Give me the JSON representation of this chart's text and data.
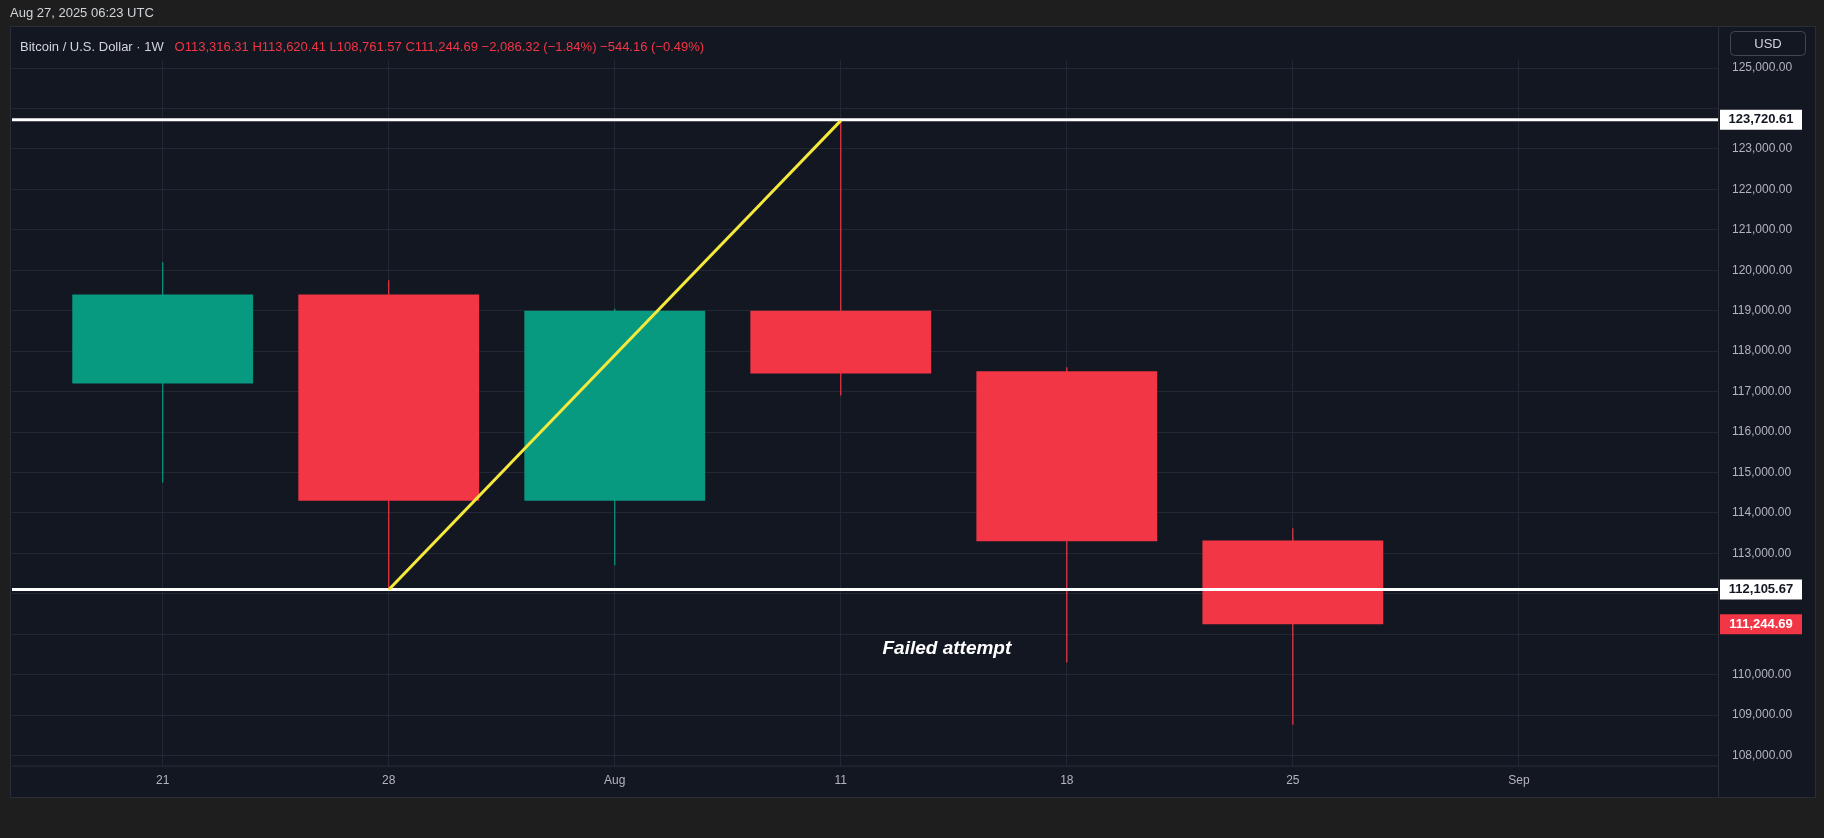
{
  "chart_data": {
    "type": "candlestick",
    "title": "Bitcoin / U.S. Dollar · 1W",
    "subtitle": "O113,316.31 H113,620.41 L108,761.57 C111,244.69 −2,086.32 (−1.84%) −544.16 (−0.49%)",
    "ylabel": "USD",
    "x": [
      "2025-07-21",
      "2025-07-28",
      "2025-08-04",
      "2025-08-11",
      "2025-08-18",
      "2025-08-25"
    ],
    "ohlc": [
      [
        117200,
        120200,
        114750,
        119400
      ],
      [
        119400,
        119750,
        112100,
        114300
      ],
      [
        114300,
        119050,
        112700,
        119000
      ],
      [
        119000,
        123720.61,
        116900,
        117450
      ],
      [
        117500,
        117600,
        110300,
        113300
      ],
      [
        113316.31,
        113620.41,
        108761.57,
        111244.69
      ]
    ],
    "colors": [
      "#089981",
      "#f23645",
      "#089981",
      "#f23645",
      "#f23645",
      "#f23645"
    ],
    "series": [
      {
        "type": "line",
        "color": "#f5e93b",
        "x": [
          "2025-07-28",
          "2025-08-11"
        ],
        "values": [
          112100,
          123700
        ]
      }
    ],
    "ref_lines": [
      {
        "axis": "y",
        "value": 123720.61,
        "label": "123,720.61",
        "color": "#ffffff"
      },
      {
        "axis": "y",
        "value": 112105.67,
        "label": "112,105.67",
        "color": "#ffffff"
      }
    ],
    "annotations": [
      "Aug 27, 2025 06:23 UTC",
      "Failed attempt",
      "111,244.69"
    ],
    "xlim": [
      "2025-07-16T08:00",
      "2025-09-07T04:00"
    ],
    "xticks": [
      {
        "value": "2025-07-21",
        "label": "21"
      },
      {
        "value": "2025-07-28",
        "label": "28"
      },
      {
        "value": "2025-08-04",
        "label": "Aug"
      },
      {
        "value": "2025-08-11",
        "label": "11"
      },
      {
        "value": "2025-08-18",
        "label": "18"
      },
      {
        "value": "2025-08-25",
        "label": "25"
      },
      {
        "value": "2025-09-01",
        "label": "Sep"
      }
    ],
    "ylim": [
      107750,
      125200
    ],
    "yticks": [
      {
        "value": 108000,
        "label": "108,000.00"
      },
      {
        "value": 109000,
        "label": "109,000.00"
      },
      {
        "value": 110000,
        "label": "110,000.00"
      },
      {
        "value": 111000,
        "label": null
      },
      {
        "value": 112000,
        "label": null
      },
      {
        "value": 113000,
        "label": "113,000.00"
      },
      {
        "value": 114000,
        "label": "114,000.00"
      },
      {
        "value": 115000,
        "label": "115,000.00"
      },
      {
        "value": 116000,
        "label": "116,000.00"
      },
      {
        "value": 117000,
        "label": "117,000.00"
      },
      {
        "value": 118000,
        "label": "118,000.00"
      },
      {
        "value": 119000,
        "label": "119,000.00"
      },
      {
        "value": 120000,
        "label": "120,000.00"
      },
      {
        "value": 121000,
        "label": "121,000.00"
      },
      {
        "value": 122000,
        "label": "122,000.00"
      },
      {
        "value": 123000,
        "label": "123,000.00"
      },
      {
        "value": 124000,
        "label": null
      },
      {
        "value": 125000,
        "label": "125,000.00"
      }
    ],
    "grid": true,
    "legend": false
  }
}
